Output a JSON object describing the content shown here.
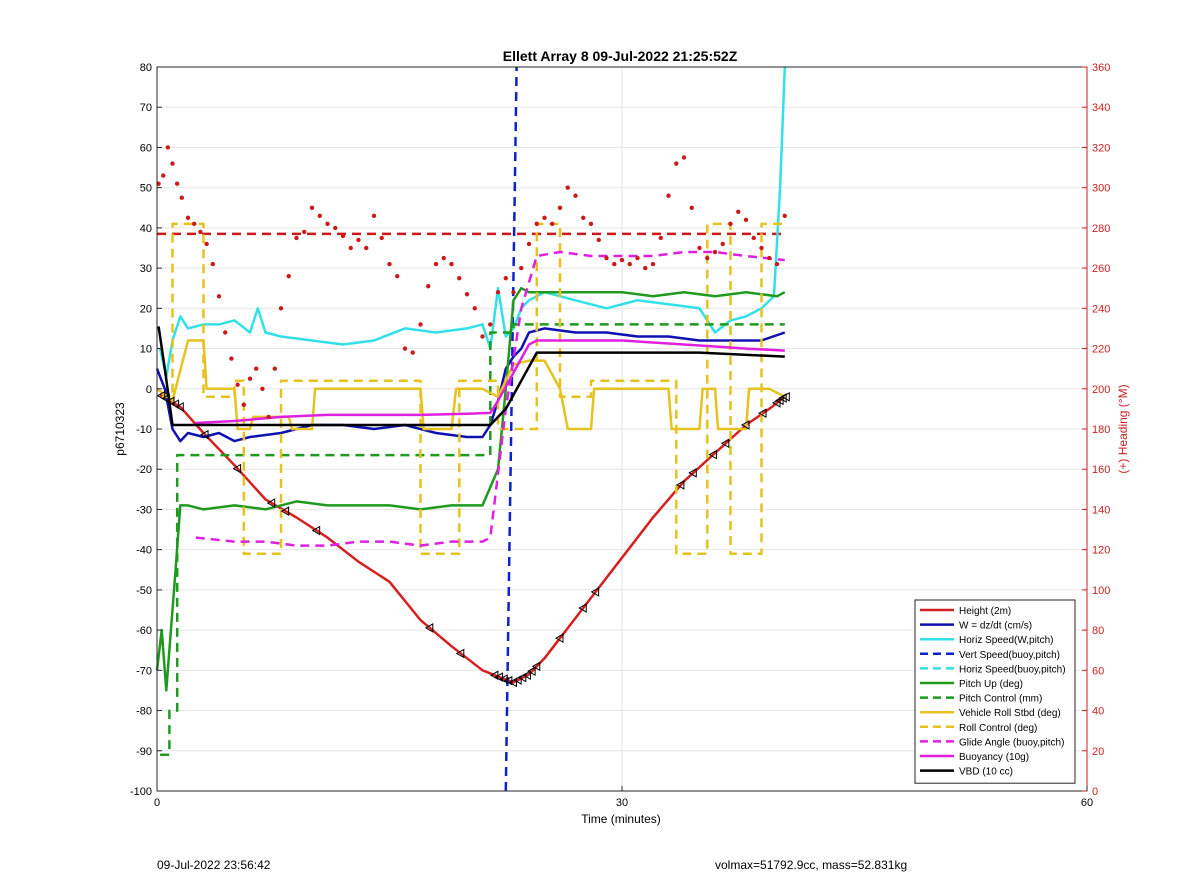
{
  "chart_data": {
    "type": "line",
    "title": "Ellett Array 8 09-Jul-2022 21:25:52Z",
    "xlabel": "Time (minutes)",
    "ylabel_left": "p6710323",
    "ylabel_right": "(+) Heading (°M)",
    "xlim": [
      0,
      60
    ],
    "ylim_left": [
      -100,
      80
    ],
    "ylim_right": [
      0,
      360
    ],
    "xticks": [
      0,
      30,
      60
    ],
    "yticks_left": [
      80,
      70,
      60,
      50,
      40,
      30,
      20,
      10,
      0,
      -10,
      -20,
      -30,
      -40,
      -50,
      -60,
      -70,
      -80,
      -90,
      -100
    ],
    "yticks_right": [
      360,
      340,
      320,
      300,
      280,
      260,
      240,
      220,
      200,
      180,
      160,
      140,
      120,
      100,
      80,
      60,
      40,
      20,
      0
    ],
    "grid": true,
    "legend_position": "bottom-right",
    "colors": {
      "axis": "#000000",
      "right_axis": "#cc1f1f",
      "grid": "#e6e6e6"
    },
    "series": [
      {
        "name": "Height (2m)",
        "color": "#d62020",
        "dash": "solid",
        "x": [
          0.2,
          1.5,
          3,
          5,
          7,
          9,
          11,
          13,
          15,
          17,
          19,
          21,
          22.3,
          23,
          24,
          25,
          26,
          28,
          30,
          32,
          34,
          36,
          38,
          39.5,
          40.5
        ],
        "y": [
          -1.5,
          -4.5,
          -11,
          -19,
          -27.5,
          -32,
          -37,
          -43,
          -48,
          -57.5,
          -64,
          -70,
          -72,
          -73,
          -71,
          -67,
          -62,
          -52,
          -42,
          -32,
          -23,
          -16,
          -9,
          -5,
          -2
        ]
      },
      {
        "name": "W = dz/dt (cm/s)",
        "color": "#1010b0",
        "dash": "solid",
        "x": [
          0,
          0.5,
          1,
          1.5,
          2,
          3,
          4,
          5,
          6,
          8,
          10,
          12,
          14,
          16,
          18,
          20,
          21,
          21.5,
          22,
          22.5,
          23,
          23.5,
          24,
          25,
          27,
          29,
          31,
          33,
          35,
          37,
          39,
          40.5
        ],
        "y": [
          5,
          0,
          -10,
          -13,
          -11,
          -12,
          -11,
          -13,
          -12,
          -11,
          -9,
          -9,
          -10,
          -9,
          -11,
          -12,
          -12,
          -9,
          -3,
          5,
          8,
          10,
          14,
          15,
          14,
          14,
          13,
          13,
          12,
          12,
          12,
          14
        ]
      },
      {
        "name": "Horiz Speed(W,pitch)",
        "color": "#33e0e8",
        "dash": "solid",
        "x": [
          0.2,
          0.6,
          1,
          1.5,
          2,
          3,
          4,
          5,
          6,
          6.5,
          7,
          8,
          10,
          12,
          14,
          16,
          18,
          20,
          21,
          21.5,
          22,
          22.5,
          23,
          23.5,
          24,
          25,
          27,
          29,
          31,
          33,
          35,
          36,
          37,
          38,
          39,
          39.8,
          40.2,
          40.5
        ],
        "y": [
          10,
          3,
          12,
          18,
          15,
          16,
          16,
          17,
          14,
          20,
          14,
          13,
          12,
          11,
          12,
          15,
          14,
          15,
          16,
          10,
          25,
          13,
          15,
          20,
          22,
          24,
          22,
          20,
          22,
          21,
          20,
          14,
          17,
          18,
          20,
          23,
          50,
          80
        ]
      },
      {
        "name": "Vert Speed(buoy,pitch)",
        "color": "#0b22cc",
        "dash": "dashed",
        "x": [
          22.5,
          23.2
        ],
        "y": [
          -100,
          80
        ]
      },
      {
        "name": "Horiz Speed(buoy,pitch)",
        "color": "#33e0e8",
        "dash": "dashed",
        "x": [],
        "y": []
      },
      {
        "name": "Pitch Up (deg)",
        "color": "#1f9a1f",
        "dash": "solid",
        "x": [
          0,
          0.3,
          0.6,
          0.9,
          1.2,
          1.5,
          2,
          3,
          5,
          7,
          9,
          11,
          13,
          15,
          17,
          19,
          21,
          22,
          22.5,
          23,
          23.5,
          24,
          26,
          28,
          30,
          32,
          34,
          36,
          38,
          40,
          40.5
        ],
        "y": [
          -70,
          -60,
          -75,
          -60,
          -45,
          -29,
          -29,
          -30,
          -29,
          -30,
          -28,
          -29,
          -29,
          -29,
          -30,
          -29,
          -29,
          -20,
          0,
          22,
          25,
          24,
          24,
          24,
          24,
          23,
          24,
          23,
          24,
          23,
          24
        ]
      },
      {
        "name": "Pitch Control (mm)",
        "color": "#1f9a1f",
        "dash": "dashed",
        "x": [
          0.2,
          0.8,
          0.8,
          1.3,
          1.3,
          21.5,
          21.5,
          23,
          23,
          25,
          25,
          40.5
        ],
        "y": [
          -91,
          -91,
          -80,
          -80,
          -16.5,
          -16.5,
          14,
          14,
          16,
          16,
          16,
          16
        ]
      },
      {
        "name": "Vehicle Roll Stbd (deg)",
        "color": "#e6c21f",
        "dash": "solid",
        "x": [
          0,
          1,
          2,
          3,
          3.2,
          5,
          5.2,
          6,
          6.2,
          8.5,
          8.7,
          10,
          10.2,
          17,
          17.2,
          19,
          19.3,
          21,
          22,
          23,
          24,
          25,
          26,
          26.5,
          28,
          28.2,
          30,
          32,
          33,
          33.2,
          35,
          35.2,
          36,
          36.2,
          38,
          38.2,
          39.5,
          40.5
        ],
        "y": [
          0,
          -3,
          12,
          12,
          0,
          0,
          -10,
          -10,
          -7,
          -7,
          -10,
          -10,
          0,
          0,
          -10,
          -10,
          0,
          0,
          -2,
          6,
          7,
          7,
          0,
          -10,
          -10,
          0,
          0,
          0,
          0,
          -10,
          -10,
          0,
          0,
          -10,
          -10,
          0,
          0,
          -2
        ]
      },
      {
        "name": "Roll Control (deg)",
        "color": "#e6c21f",
        "dash": "dashed",
        "x": [
          0.3,
          1,
          1,
          3,
          3,
          5,
          5,
          5.6,
          5.6,
          8,
          8,
          10.5,
          10.5,
          17,
          17,
          19.5,
          19.5,
          22,
          22,
          24.5,
          24.5,
          26,
          26,
          28,
          28,
          30,
          30,
          33.5,
          33.5,
          35.5,
          35.5,
          37,
          37,
          39,
          39,
          40.5
        ],
        "y": [
          -2,
          -2,
          41,
          41,
          -2,
          -2,
          2,
          2,
          -41,
          -41,
          2,
          2,
          2,
          2,
          -41,
          -41,
          2,
          2,
          -10,
          -10,
          41,
          41,
          -2,
          -2,
          2,
          2,
          2,
          2,
          -41,
          -41,
          41,
          41,
          -41,
          -41,
          41,
          41
        ]
      },
      {
        "name": "Glide Angle (buoy,pitch)",
        "color": "#e020e0",
        "dash": "dashed",
        "x": [
          2.5,
          5,
          7,
          9,
          11,
          13,
          15,
          17,
          19,
          21,
          21.5,
          22.5,
          23.5,
          24.5,
          26,
          28,
          30,
          32,
          34,
          36,
          38,
          40.5
        ],
        "y": [
          -37,
          -38,
          -38,
          -39,
          -39,
          -38,
          -38,
          -39,
          -38,
          -38,
          -37,
          -5,
          20,
          33,
          34,
          33,
          33,
          33,
          34,
          34,
          33,
          32
        ]
      },
      {
        "name": "Buoyancy (10g)",
        "color": "#e020e0",
        "dash": "solid",
        "x": [
          2.5,
          5,
          8,
          11,
          14,
          17,
          20,
          21.5,
          22,
          23,
          24,
          24.5,
          26,
          28,
          30,
          32,
          34,
          36,
          38,
          40.5
        ],
        "y": [
          -8.5,
          -8,
          -7,
          -6.5,
          -6.5,
          -6.5,
          -6.2,
          -6,
          -3,
          4,
          11,
          12,
          12,
          12,
          12,
          11.5,
          11,
          10.5,
          10,
          9.5
        ]
      },
      {
        "name": "VBD (10 cc)",
        "color": "#000000",
        "dash": "solid",
        "x": [
          0.1,
          0.5,
          1,
          21.5,
          22.5,
          23.5,
          24.5,
          26,
          30,
          35,
          40.5
        ],
        "y": [
          15.5,
          5,
          -9,
          -9,
          -5,
          2,
          9,
          9,
          9,
          9,
          8
        ]
      }
    ],
    "heading_series": {
      "color": "#cc1a1a",
      "axis": "right",
      "mean_line": 277,
      "x": [
        0.1,
        0.4,
        0.7,
        1,
        1.3,
        1.6,
        2,
        2.4,
        2.8,
        3.2,
        3.6,
        4,
        4.4,
        4.8,
        5.2,
        5.6,
        6,
        6.4,
        6.8,
        7.2,
        7.6,
        8,
        8.5,
        9,
        9.5,
        10,
        10.5,
        11,
        11.5,
        12,
        12.5,
        13,
        13.5,
        14,
        14.5,
        15,
        15.5,
        16,
        16.5,
        17,
        17.5,
        18,
        18.5,
        19,
        19.5,
        20,
        20.5,
        21,
        21.5,
        22,
        22.5,
        23,
        23.5,
        24,
        24.5,
        25,
        25.5,
        26,
        26.5,
        27,
        27.5,
        28,
        28.5,
        29,
        29.5,
        30,
        30.5,
        31,
        31.5,
        32,
        32.5,
        33,
        33.5,
        34,
        34.5,
        35,
        35.5,
        36,
        36.5,
        37,
        37.5,
        38,
        38.5,
        39,
        39.5,
        40,
        40.5
      ],
      "y": [
        302,
        306,
        320,
        312,
        302,
        295,
        285,
        282,
        278,
        272,
        262,
        246,
        228,
        215,
        202,
        192,
        205,
        210,
        200,
        186,
        210,
        240,
        256,
        275,
        278,
        290,
        286,
        282,
        280,
        276,
        270,
        274,
        270,
        286,
        275,
        262,
        256,
        220,
        218,
        232,
        251,
        262,
        265,
        262,
        255,
        247,
        240,
        226,
        232,
        248,
        255,
        248,
        260,
        272,
        282,
        285,
        282,
        290,
        300,
        296,
        285,
        282,
        274,
        265,
        262,
        264,
        262,
        265,
        260,
        262,
        275,
        296,
        312,
        315,
        290,
        270,
        265,
        268,
        272,
        282,
        288,
        284,
        275,
        270,
        265,
        262,
        286
      ]
    },
    "dive_markers": {
      "color": "#000000",
      "x": [
        0.3,
        0.6,
        0.9,
        1.2,
        1.5,
        3.1,
        5.2,
        7.4,
        8.3,
        10.3,
        17.6,
        19.6,
        21.8,
        22.1,
        22.4,
        22.7,
        23.0,
        23.3,
        23.6,
        23.9,
        24.2,
        24.5,
        26.0,
        27.5,
        28.3,
        33.8,
        34.6,
        35.9,
        36.7,
        38.0,
        39.1,
        40.0,
        40.2,
        40.4,
        40.6
      ]
    }
  },
  "footer": {
    "left": "09-Jul-2022 23:56:42",
    "right": "volmax=51792.9cc, mass=52.831kg"
  }
}
